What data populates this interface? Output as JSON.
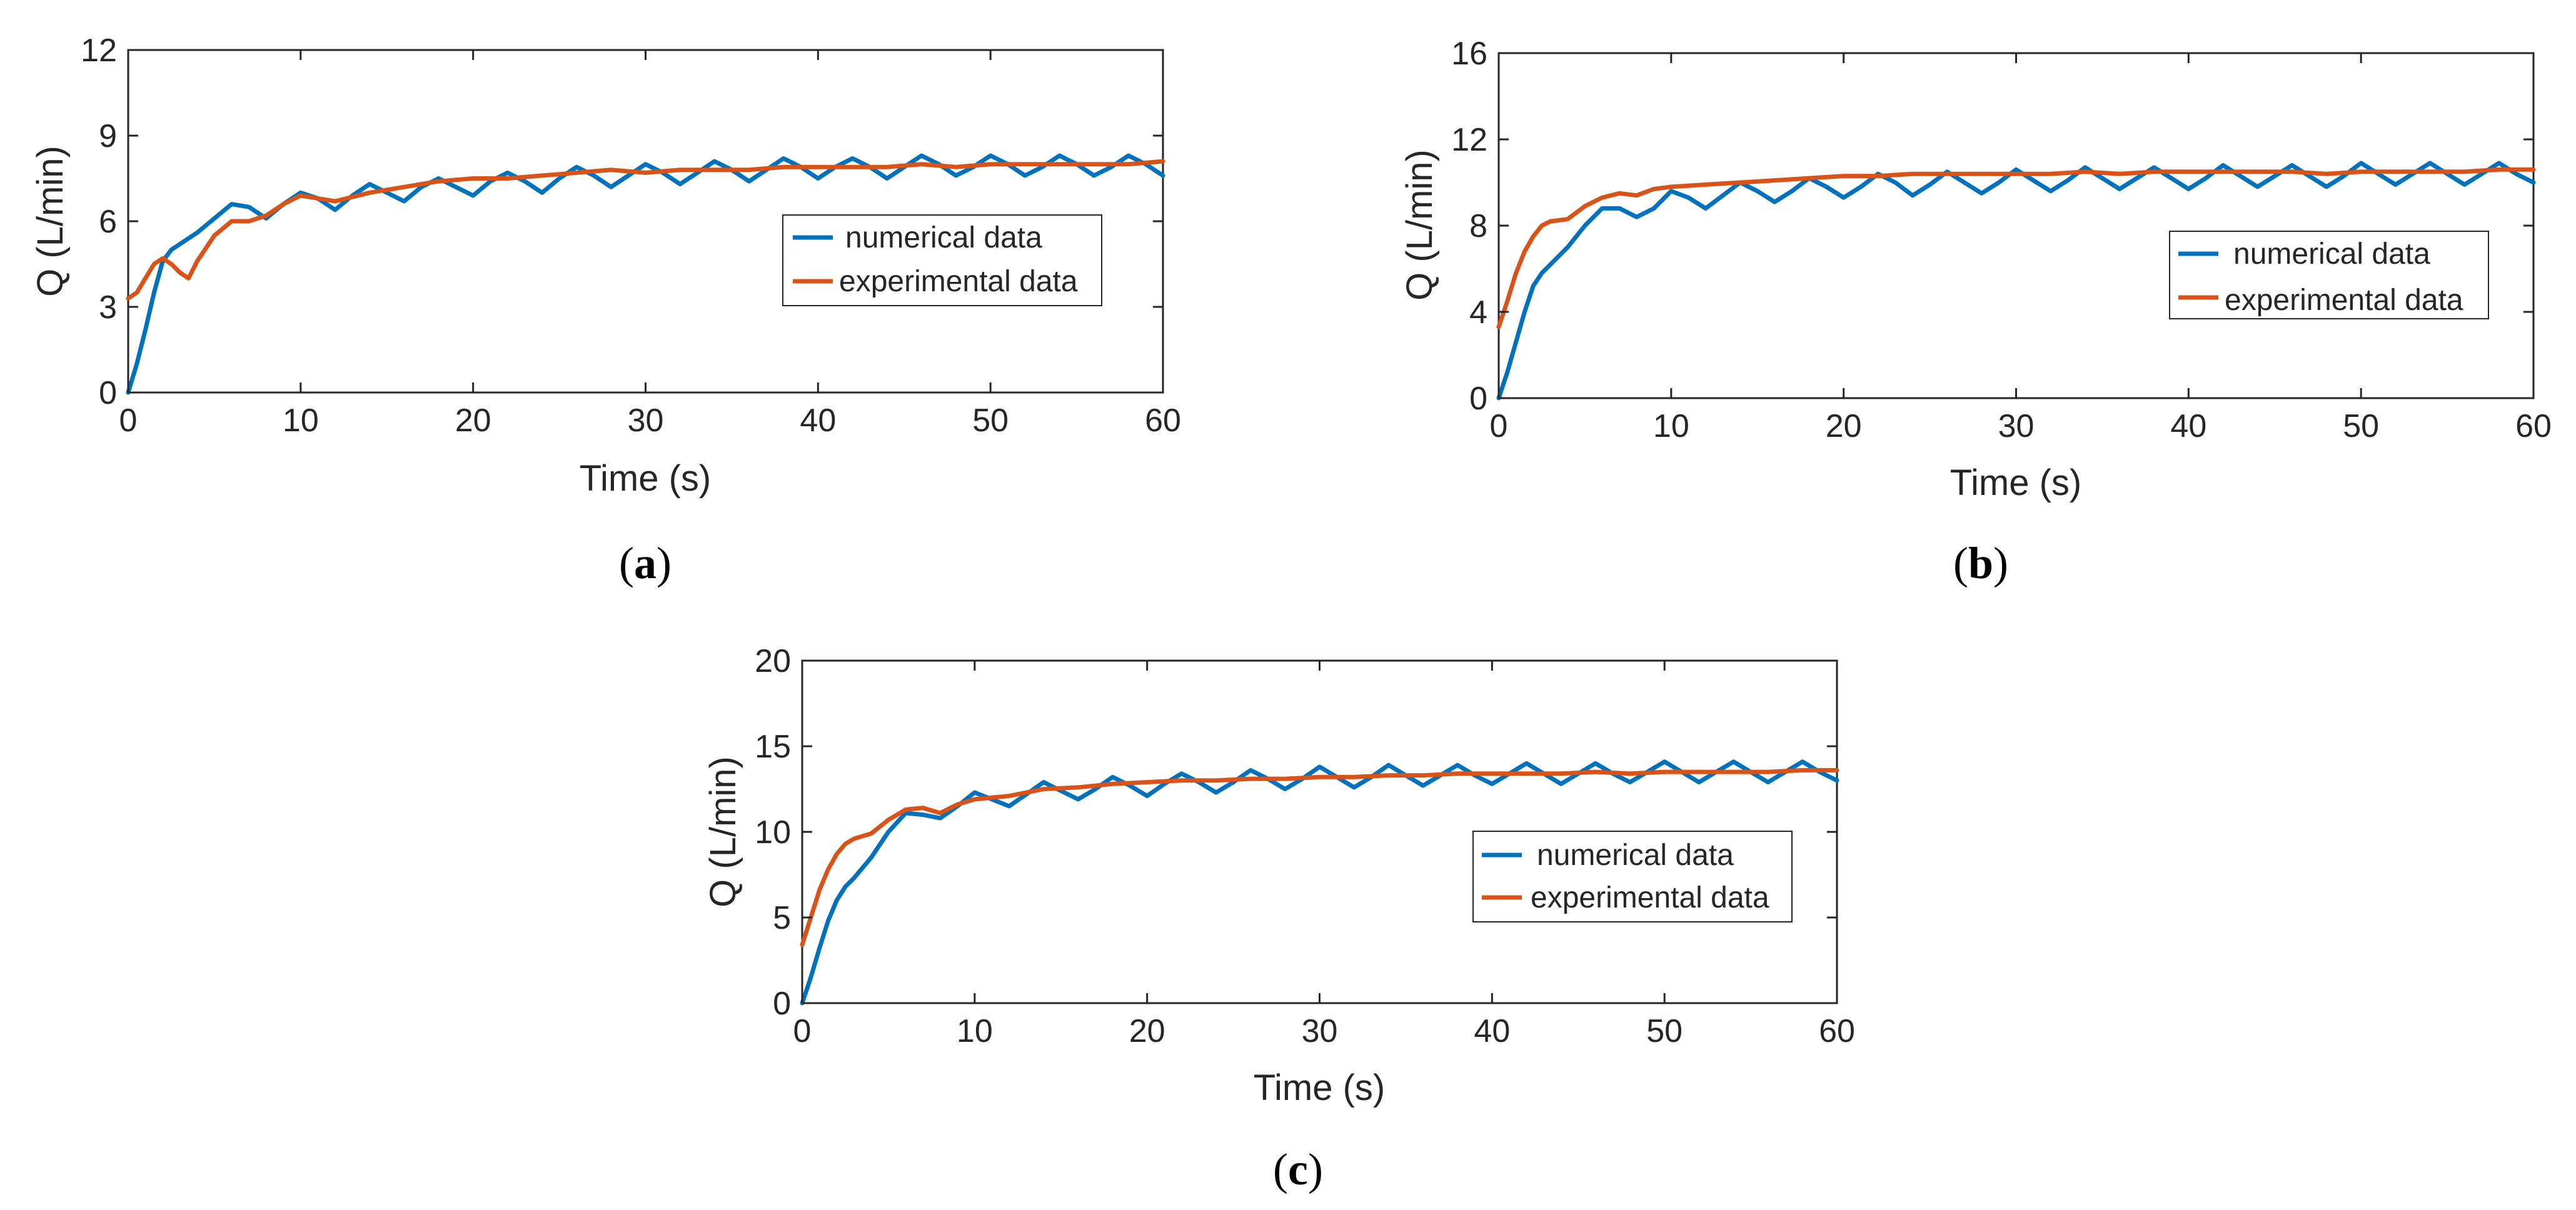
{
  "colors": {
    "numerical": "#0072BD",
    "experimental": "#D95319",
    "axis": "#262626",
    "background": "#ffffff"
  },
  "chart_data": [
    {
      "type": "line",
      "panel": "a",
      "caption": {
        "open": "(",
        "letter": "a",
        "close": ")"
      },
      "xlabel": "Time (s)",
      "ylabel": "Q (L/min)",
      "xlim": [
        0,
        60
      ],
      "ylim": [
        0,
        12
      ],
      "xticks": [
        0,
        10,
        20,
        30,
        40,
        50,
        60
      ],
      "yticks": [
        0,
        3,
        6,
        9,
        12
      ],
      "grid": false,
      "legend_position": "right",
      "series": [
        {
          "name": "numerical data",
          "color": "#0072BD",
          "x": [
            0,
            0.5,
            1,
            1.5,
            2,
            2.5,
            3,
            3.5,
            4,
            5,
            6,
            7,
            8,
            9,
            10,
            11,
            12,
            13,
            14,
            15,
            16,
            17,
            18,
            19,
            20,
            21,
            22,
            23,
            24,
            25,
            26,
            27,
            28,
            29,
            30,
            31,
            32,
            33,
            34,
            35,
            36,
            37,
            38,
            39,
            40,
            41,
            42,
            43,
            44,
            45,
            46,
            47,
            48,
            49,
            50,
            51,
            52,
            53,
            54,
            55,
            56,
            57,
            58,
            59,
            60
          ],
          "y": [
            0,
            1.0,
            2.2,
            3.5,
            4.6,
            5.0,
            5.2,
            5.4,
            5.6,
            6.1,
            6.6,
            6.5,
            6.1,
            6.6,
            7.0,
            6.8,
            6.4,
            6.9,
            7.3,
            7.0,
            6.7,
            7.2,
            7.5,
            7.2,
            6.9,
            7.4,
            7.7,
            7.4,
            7.0,
            7.5,
            7.9,
            7.6,
            7.2,
            7.6,
            8.0,
            7.7,
            7.3,
            7.7,
            8.1,
            7.8,
            7.4,
            7.8,
            8.2,
            7.9,
            7.5,
            7.9,
            8.2,
            7.9,
            7.5,
            7.9,
            8.3,
            8.0,
            7.6,
            7.9,
            8.3,
            8.0,
            7.6,
            7.9,
            8.3,
            8.0,
            7.6,
            7.9,
            8.3,
            8.0,
            7.6
          ]
        },
        {
          "name": "experimental data",
          "color": "#D95319",
          "x": [
            0,
            0.5,
            1,
            1.5,
            2,
            2.5,
            3,
            3.5,
            4,
            5,
            6,
            7,
            8,
            9,
            10,
            12,
            14,
            16,
            18,
            20,
            22,
            24,
            26,
            28,
            30,
            32,
            34,
            36,
            38,
            40,
            42,
            44,
            46,
            48,
            50,
            52,
            54,
            56,
            58,
            60
          ],
          "y": [
            3.3,
            3.5,
            4.0,
            4.5,
            4.7,
            4.5,
            4.2,
            4.0,
            4.6,
            5.5,
            6.0,
            6.0,
            6.2,
            6.6,
            6.9,
            6.7,
            7.0,
            7.2,
            7.4,
            7.5,
            7.5,
            7.6,
            7.7,
            7.8,
            7.7,
            7.8,
            7.8,
            7.8,
            7.9,
            7.9,
            7.9,
            7.9,
            8.0,
            7.9,
            8.0,
            8.0,
            8.0,
            8.0,
            8.0,
            8.1
          ]
        }
      ]
    },
    {
      "type": "line",
      "panel": "b",
      "caption": {
        "open": "(",
        "letter": "b",
        "close": ")"
      },
      "xlabel": "Time (s)",
      "ylabel": "Q (L/min)",
      "xlim": [
        0,
        60
      ],
      "ylim": [
        0,
        16
      ],
      "xticks": [
        0,
        10,
        20,
        30,
        40,
        50,
        60
      ],
      "yticks": [
        0,
        4,
        8,
        12,
        16
      ],
      "grid": false,
      "legend_position": "right",
      "series": [
        {
          "name": "numerical data",
          "color": "#0072BD",
          "x": [
            0,
            0.5,
            1,
            1.5,
            2,
            2.5,
            3,
            4,
            5,
            6,
            7,
            8,
            9,
            10,
            11,
            12,
            13,
            14,
            15,
            16,
            17,
            18,
            19,
            20,
            21,
            22,
            23,
            24,
            25,
            26,
            27,
            28,
            29,
            30,
            31,
            32,
            33,
            34,
            35,
            36,
            37,
            38,
            39,
            40,
            41,
            42,
            43,
            44,
            45,
            46,
            47,
            48,
            49,
            50,
            51,
            52,
            53,
            54,
            55,
            56,
            57,
            58,
            59,
            60
          ],
          "y": [
            0,
            1.2,
            2.6,
            4.0,
            5.2,
            5.8,
            6.2,
            7.0,
            8.0,
            8.8,
            8.8,
            8.4,
            8.8,
            9.6,
            9.3,
            8.8,
            9.4,
            10.0,
            9.6,
            9.1,
            9.6,
            10.2,
            9.8,
            9.3,
            9.8,
            10.4,
            10.0,
            9.4,
            9.9,
            10.5,
            10.0,
            9.5,
            10.0,
            10.6,
            10.1,
            9.6,
            10.1,
            10.7,
            10.2,
            9.7,
            10.2,
            10.7,
            10.2,
            9.7,
            10.2,
            10.8,
            10.3,
            9.8,
            10.3,
            10.8,
            10.3,
            9.8,
            10.3,
            10.9,
            10.4,
            9.9,
            10.4,
            10.9,
            10.4,
            9.9,
            10.4,
            10.9,
            10.4,
            10.0
          ]
        },
        {
          "name": "experimental data",
          "color": "#D95319",
          "x": [
            0,
            0.5,
            1,
            1.5,
            2,
            2.5,
            3,
            4,
            5,
            6,
            7,
            8,
            9,
            10,
            12,
            14,
            16,
            18,
            20,
            22,
            24,
            26,
            28,
            30,
            32,
            34,
            36,
            38,
            40,
            42,
            44,
            46,
            48,
            50,
            52,
            54,
            56,
            58,
            60
          ],
          "y": [
            3.3,
            4.5,
            5.8,
            6.8,
            7.5,
            8.0,
            8.2,
            8.3,
            8.9,
            9.3,
            9.5,
            9.4,
            9.7,
            9.8,
            9.9,
            10.0,
            10.1,
            10.2,
            10.3,
            10.3,
            10.4,
            10.4,
            10.4,
            10.4,
            10.4,
            10.5,
            10.4,
            10.5,
            10.5,
            10.5,
            10.5,
            10.5,
            10.4,
            10.5,
            10.5,
            10.5,
            10.5,
            10.6,
            10.6
          ]
        }
      ]
    },
    {
      "type": "line",
      "panel": "c",
      "caption": {
        "open": "(",
        "letter": "c",
        "close": ")"
      },
      "xlabel": "Time (s)",
      "ylabel": "Q (L/min)",
      "xlim": [
        0,
        60
      ],
      "ylim": [
        0,
        20
      ],
      "xticks": [
        0,
        10,
        20,
        30,
        40,
        50,
        60
      ],
      "yticks": [
        0,
        5,
        10,
        15,
        20
      ],
      "grid": false,
      "legend_position": "right",
      "series": [
        {
          "name": "numerical data",
          "color": "#0072BD",
          "x": [
            0,
            0.5,
            1,
            1.5,
            2,
            2.5,
            3,
            4,
            5,
            6,
            7,
            8,
            9,
            10,
            11,
            12,
            13,
            14,
            15,
            16,
            17,
            18,
            19,
            20,
            21,
            22,
            23,
            24,
            25,
            26,
            27,
            28,
            29,
            30,
            31,
            32,
            33,
            34,
            35,
            36,
            37,
            38,
            39,
            40,
            41,
            42,
            43,
            44,
            45,
            46,
            47,
            48,
            49,
            50,
            51,
            52,
            53,
            54,
            55,
            56,
            57,
            58,
            59,
            60
          ],
          "y": [
            0,
            1.5,
            3.2,
            4.8,
            6.0,
            6.8,
            7.3,
            8.5,
            10.0,
            11.1,
            11.0,
            10.8,
            11.5,
            12.3,
            11.9,
            11.5,
            12.2,
            12.9,
            12.4,
            11.9,
            12.5,
            13.2,
            12.7,
            12.1,
            12.8,
            13.4,
            12.9,
            12.3,
            12.9,
            13.6,
            13.1,
            12.5,
            13.1,
            13.8,
            13.2,
            12.6,
            13.2,
            13.9,
            13.3,
            12.7,
            13.3,
            13.9,
            13.3,
            12.8,
            13.4,
            14.0,
            13.4,
            12.8,
            13.4,
            14.0,
            13.4,
            12.9,
            13.5,
            14.1,
            13.5,
            12.9,
            13.5,
            14.1,
            13.5,
            12.9,
            13.5,
            14.1,
            13.5,
            13.0
          ]
        },
        {
          "name": "experimental data",
          "color": "#D95319",
          "x": [
            0,
            0.5,
            1,
            1.5,
            2,
            2.5,
            3,
            4,
            5,
            6,
            7,
            8,
            9,
            10,
            12,
            14,
            16,
            18,
            20,
            22,
            24,
            26,
            28,
            30,
            32,
            34,
            36,
            38,
            40,
            42,
            44,
            46,
            48,
            50,
            52,
            54,
            56,
            58,
            60
          ],
          "y": [
            3.4,
            5.0,
            6.6,
            7.8,
            8.7,
            9.3,
            9.6,
            9.9,
            10.7,
            11.3,
            11.4,
            11.1,
            11.6,
            11.9,
            12.1,
            12.5,
            12.6,
            12.8,
            12.9,
            13.0,
            13.0,
            13.1,
            13.1,
            13.2,
            13.2,
            13.3,
            13.3,
            13.4,
            13.4,
            13.4,
            13.4,
            13.5,
            13.4,
            13.5,
            13.5,
            13.5,
            13.5,
            13.6,
            13.6
          ]
        }
      ]
    }
  ]
}
